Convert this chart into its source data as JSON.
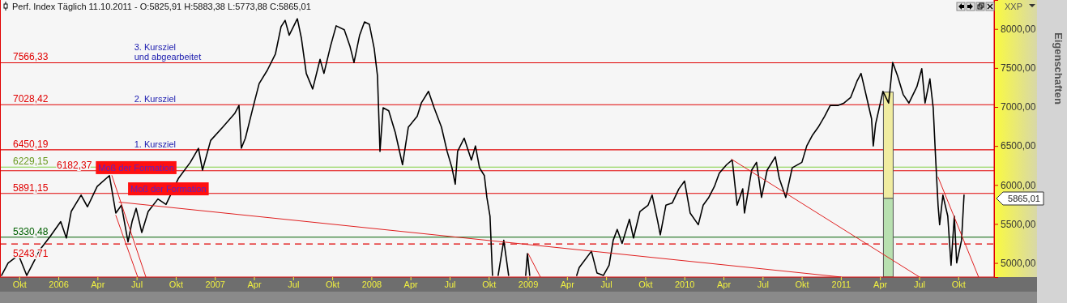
{
  "chart_data": {
    "type": "line",
    "title": "Perf. Index Täglich 11.10.2011 - O:5825,91 H:5883,38 L:5773,88 C:5865,01",
    "xlim": [
      2005.627,
      2011.979
    ],
    "ylim": [
      4819,
      8371
    ],
    "xticks": [
      {
        "value": 2005.75,
        "label": "Okt"
      },
      {
        "value": 2006,
        "label": "2006"
      },
      {
        "value": 2006.25,
        "label": "Apr"
      },
      {
        "value": 2006.5,
        "label": "Jul"
      },
      {
        "value": 2006.75,
        "label": "Okt"
      },
      {
        "value": 2007,
        "label": "2007"
      },
      {
        "value": 2007.25,
        "label": "Apr"
      },
      {
        "value": 2007.5,
        "label": "Jul"
      },
      {
        "value": 2007.75,
        "label": "Okt"
      },
      {
        "value": 2008,
        "label": "2008"
      },
      {
        "value": 2008.25,
        "label": "Apr"
      },
      {
        "value": 2008.5,
        "label": "Jul"
      },
      {
        "value": 2008.75,
        "label": "Okt"
      },
      {
        "value": 2009,
        "label": "2009"
      },
      {
        "value": 2009.25,
        "label": "Apr"
      },
      {
        "value": 2009.5,
        "label": "Jul"
      },
      {
        "value": 2009.75,
        "label": "Okt"
      },
      {
        "value": 2010,
        "label": "2010"
      },
      {
        "value": 2010.25,
        "label": "Apr"
      },
      {
        "value": 2010.5,
        "label": "Jul"
      },
      {
        "value": 2010.75,
        "label": "Okt"
      },
      {
        "value": 2011,
        "label": "2011"
      },
      {
        "value": 2011.25,
        "label": "Apr"
      },
      {
        "value": 2011.5,
        "label": "Jul"
      },
      {
        "value": 2011.75,
        "label": "Okt"
      }
    ],
    "yticks": [
      {
        "value": 5000,
        "label": "5000,00"
      },
      {
        "value": 5500,
        "label": "5500,00"
      },
      {
        "value": 6000,
        "label": "6000,00"
      },
      {
        "value": 6500,
        "label": "6500,00"
      },
      {
        "value": 7000,
        "label": "7000,00"
      },
      {
        "value": 7500,
        "label": "7500,00"
      },
      {
        "value": 8000,
        "label": "8000,00"
      }
    ],
    "grid": false,
    "series": [
      {
        "type": "bar",
        "colors": [
          "#b8e0b0",
          "#f0eca0"
        ],
        "x": [
          2011.303,
          2011.303
        ],
        "base": [
          4820,
          5830
        ],
        "values": [
          1010,
          1360
        ]
      },
      {
        "color": "#000000",
        "x": [
          2005.637,
          2005.679,
          2005.746,
          2005.798,
          2005.886,
          2005.948,
          2006.015,
          2006.051,
          2006.082,
          2006.145,
          2006.186,
          2006.248,
          2006.326,
          2006.367,
          2006.403,
          2006.445,
          2006.471,
          2006.497,
          2006.533,
          2006.574,
          2006.636,
          2006.688,
          2006.766,
          2006.843,
          2006.895,
          2006.921,
          2006.973,
          2007.05,
          2007.128,
          2007.154,
          2007.169,
          2007.195,
          2007.247,
          2007.283,
          2007.335,
          2007.387,
          2007.423,
          2007.449,
          2007.475,
          2007.527,
          2007.553,
          2007.584,
          2007.625,
          2007.672,
          2007.697,
          2007.739,
          2007.775,
          2007.827,
          2007.863,
          2007.889,
          2007.925,
          2007.956,
          2007.987,
          2008.018,
          2008.039,
          2008.055,
          2008.075,
          2008.111,
          2008.153,
          2008.199,
          2008.236,
          2008.293,
          2008.319,
          2008.365,
          2008.401,
          2008.448,
          2008.484,
          2008.515,
          2008.536,
          2008.551,
          2008.593,
          2008.639,
          2008.665,
          2008.691,
          2008.722,
          2008.738,
          2008.758,
          2008.774,
          2008.79,
          2008.81,
          2008.846,
          2008.877,
          2008.93,
          2008.986,
          2008.997,
          2009.012,
          2009.16,
          2009.312,
          2009.328,
          2009.406,
          2009.442,
          2009.483,
          2009.519,
          2009.545,
          2009.571,
          2009.602,
          2009.649,
          2009.675,
          2009.716,
          2009.768,
          2009.794,
          2009.83,
          2009.846,
          2009.882,
          2009.923,
          2009.965,
          2010.001,
          2010.037,
          2010.089,
          2010.12,
          2010.156,
          2010.192,
          2010.223,
          2010.27,
          2010.306,
          2010.337,
          2010.373,
          2010.384,
          2010.43,
          2010.461,
          2010.493,
          2010.529,
          2010.581,
          2010.607,
          2010.648,
          2010.689,
          2010.751,
          2010.782,
          2010.819,
          2010.855,
          2010.896,
          2010.932,
          2010.984,
          2011.02,
          2011.062,
          2011.103,
          2011.129,
          2011.165,
          2011.196,
          2011.207,
          2011.222,
          2011.269,
          2011.305,
          2011.321,
          2011.331,
          2011.362,
          2011.398,
          2011.435,
          2011.486,
          2011.517,
          2011.538,
          2011.569,
          2011.59,
          2011.605,
          2011.621,
          2011.631,
          2011.652,
          2011.683,
          2011.704,
          2011.725,
          2011.74,
          2011.771,
          2011.787
        ],
        "values": [
          4840,
          5000,
          5100,
          4840,
          5180,
          5340,
          5530,
          5320,
          5660,
          5870,
          5720,
          5980,
          6120,
          5640,
          5740,
          5270,
          5530,
          5700,
          5390,
          5660,
          5820,
          5750,
          6080,
          6290,
          6470,
          6190,
          6570,
          6740,
          6920,
          7020,
          6470,
          6600,
          7020,
          7300,
          7470,
          7680,
          8030,
          8110,
          7920,
          8130,
          7880,
          7430,
          7230,
          7610,
          7430,
          7780,
          8040,
          7990,
          7780,
          7570,
          7920,
          8090,
          8060,
          7750,
          7400,
          6430,
          6990,
          6950,
          6670,
          6260,
          6740,
          6880,
          7050,
          7200,
          6990,
          6740,
          6430,
          6220,
          6010,
          6430,
          6600,
          6320,
          6500,
          6220,
          6120,
          5840,
          5600,
          4840,
          null,
          4840,
          5290,
          4840,
          null,
          4840,
          5120,
          4840,
          null,
          4840,
          4940,
          5150,
          4870,
          4840,
          4970,
          5290,
          5430,
          5250,
          5560,
          5320,
          5660,
          5740,
          5870,
          5530,
          5360,
          5740,
          5770,
          5950,
          6050,
          5640,
          5490,
          5740,
          5840,
          5980,
          6150,
          6260,
          6320,
          5740,
          5950,
          5640,
          6190,
          6290,
          5840,
          6190,
          6360,
          6080,
          5840,
          6220,
          6290,
          6500,
          6640,
          6740,
          6880,
          7020,
          7020,
          7050,
          7120,
          7330,
          7430,
          7120,
          6850,
          6500,
          6780,
          7200,
          7050,
          7360,
          7570,
          7400,
          7160,
          7050,
          7260,
          7490,
          7050,
          7360,
          6990,
          6360,
          5740,
          5490,
          5870,
          5600,
          4970,
          5600,
          5000,
          5290,
          5870
        ]
      },
      {
        "type": "line",
        "color": "#e02020",
        "x": [
          2006.342,
          2006.559
        ],
        "values": [
          6120,
          4820
        ]
      },
      {
        "type": "line",
        "color": "#e02020",
        "x": [
          2006.367,
          2006.507
        ],
        "values": [
          5610,
          4820
        ]
      },
      {
        "type": "line",
        "color": "#e02020",
        "x": [
          2006.388,
          2011.0
        ],
        "values": [
          5780,
          4820
        ]
      },
      {
        "type": "line",
        "color": "#e02020",
        "x": [
          2009.002,
          2009.08
        ],
        "values": [
          5120,
          4820
        ]
      },
      {
        "type": "line",
        "color": "#e02020",
        "x": [
          2010.301,
          2011.502
        ],
        "values": [
          6330,
          4820
        ]
      },
      {
        "type": "line",
        "color": "#e02020",
        "x": [
          2011.621,
          2011.88
        ],
        "values": [
          6100,
          4820
        ]
      }
    ],
    "ref_lines": [
      {
        "axis": "y",
        "value": 7566.33,
        "label": "7566,33",
        "color": "#e00000"
      },
      {
        "axis": "y",
        "value": 7028.42,
        "label": "7028,42",
        "color": "#e00000"
      },
      {
        "axis": "y",
        "value": 6450.19,
        "label": "6450,19",
        "color": "#e00000"
      },
      {
        "axis": "y",
        "value": 6229.15,
        "label": "6229,15",
        "color": "#80d040"
      },
      {
        "axis": "y",
        "value": 6182.37,
        "label": "6182,37",
        "color": "#e00000"
      },
      {
        "axis": "y",
        "value": 5891.15,
        "label": "5891,15",
        "color": "#e00000"
      },
      {
        "axis": "y",
        "value": 5330.48,
        "label": "5330,48",
        "color": "#006000"
      },
      {
        "axis": "y",
        "value": 5243.71,
        "label": "5243,71",
        "color": "#e00000",
        "line_style": "dashed"
      }
    ],
    "annotations": [
      {
        "text": "3. Kursziel\nund abgearbeitet",
        "x": 2006.64,
        "y": 7566.33
      },
      {
        "text": "2. Kursziel",
        "x": 2006.64,
        "y": 7028.42
      },
      {
        "text": "1. Kursziel",
        "x": 2006.64,
        "y": 6450.19
      },
      {
        "text": "Moß der Formation",
        "x": 2006.497,
        "y": 6222
      },
      {
        "text": "Moß der Formation",
        "x": 2006.703,
        "y": 5950
      },
      "5865,01",
      "XXP",
      "Eigenschaften"
    ]
  }
}
